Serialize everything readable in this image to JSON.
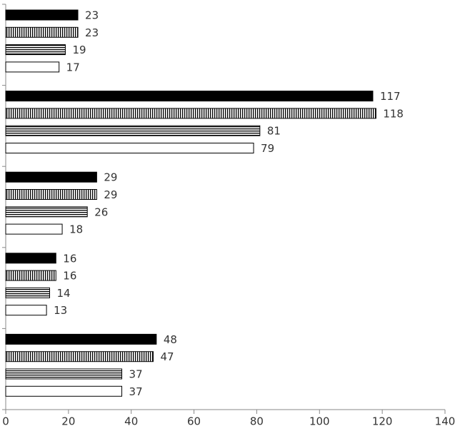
{
  "chart_data": {
    "type": "bar",
    "orientation": "horizontal",
    "categories": [
      null,
      null,
      null,
      null,
      null
    ],
    "series": [
      {
        "color": "#000000",
        "pattern": "solid",
        "values": [
          23,
          117,
          29,
          16,
          48
        ]
      },
      {
        "color": "#000000",
        "pattern": "vertical-stripes",
        "values": [
          23,
          118,
          29,
          16,
          47
        ]
      },
      {
        "color": "#000000",
        "pattern": "horizontal-stripes",
        "values": [
          19,
          81,
          26,
          14,
          37
        ]
      },
      {
        "color": "#000000",
        "pattern": "none",
        "values": [
          17,
          79,
          18,
          13,
          37
        ]
      }
    ],
    "xlim": [
      0,
      140
    ],
    "xticks": [
      0,
      20,
      40,
      60,
      80,
      100,
      120,
      140
    ],
    "data_labels": true
  }
}
